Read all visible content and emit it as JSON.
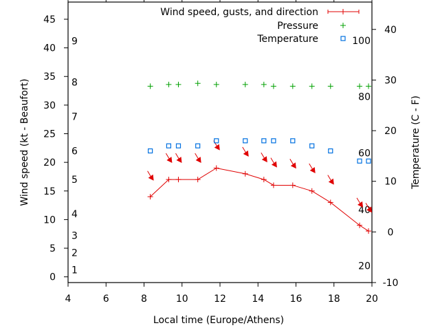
{
  "chart_data": {
    "type": "line",
    "title": "",
    "xlabel": "Local time (Europe/Athens)",
    "ylabel": "Wind speed (kt - Beaufort)",
    "y2label": "Temperature (C - F)",
    "xlim": [
      4,
      20
    ],
    "ylim": [
      -1,
      48
    ],
    "y2lim": [
      -10,
      45.4
    ],
    "x_ticks": [
      "4",
      "6",
      "8",
      "10",
      "12",
      "14",
      "16",
      "18",
      "20"
    ],
    "x_tick_values": [
      4,
      6,
      8,
      10,
      12,
      14,
      16,
      18,
      20
    ],
    "y_ticks": [
      "0",
      "5",
      "10",
      "15",
      "20",
      "25",
      "30",
      "35",
      "40",
      "45"
    ],
    "y_tick_values": [
      0,
      5,
      10,
      15,
      20,
      25,
      30,
      35,
      40,
      45
    ],
    "y2_ticks": [
      "-10",
      "0",
      "10",
      "20",
      "30",
      "40"
    ],
    "y2_tick_values": [
      -10,
      0,
      10,
      20,
      30,
      40
    ],
    "beaufort_labels": [
      {
        "text": "1",
        "kt": 1.2
      },
      {
        "text": "2",
        "kt": 4.2
      },
      {
        "text": "3",
        "kt": 7.2
      },
      {
        "text": "4",
        "kt": 11.0
      },
      {
        "text": "5",
        "kt": 17.0
      },
      {
        "text": "6",
        "kt": 22.0
      },
      {
        "text": "7",
        "kt": 28.0
      },
      {
        "text": "8",
        "kt": 34.0
      },
      {
        "text": "9",
        "kt": 41.2
      }
    ],
    "fahrenheit_labels": [
      {
        "text": "20",
        "c": -6.7
      },
      {
        "text": "40",
        "c": 4.4
      },
      {
        "text": "60",
        "c": 15.6
      },
      {
        "text": "80",
        "c": 26.7
      },
      {
        "text": "100",
        "c": 37.8
      }
    ],
    "legend_position": "top-right",
    "grid": false,
    "x": [
      8.33,
      9.3,
      9.81,
      10.83,
      11.81,
      13.33,
      14.31,
      14.82,
      15.83,
      16.84,
      17.82,
      19.35,
      19.82
    ],
    "series": [
      {
        "name": "Wind speed, gusts, and direction",
        "color": "#e00000",
        "style": "line-with-crosses",
        "values": [
          14,
          17,
          17,
          17,
          19,
          18,
          17,
          16,
          16,
          15,
          13,
          9,
          8
        ],
        "gusts": [
          17.4,
          20.5,
          20.5,
          20.5,
          22.7,
          21.6,
          20.6,
          19.7,
          19.5,
          18.7,
          16.7,
          12.7,
          11.8
        ],
        "direction": "NW"
      },
      {
        "name": "Pressure",
        "color": "#00a000",
        "style": "plus-markers",
        "axis": "left",
        "values": [
          33.3,
          33.6,
          33.6,
          33.8,
          33.6,
          33.6,
          33.6,
          33.3,
          33.3,
          33.3,
          33.3,
          33.3,
          33.3
        ]
      },
      {
        "name": "Temperature",
        "color": "#0070e0",
        "style": "square-markers",
        "axis": "right",
        "values": [
          16,
          17,
          17,
          17,
          18,
          18,
          18,
          18,
          18,
          17,
          16,
          14,
          14
        ]
      }
    ]
  }
}
